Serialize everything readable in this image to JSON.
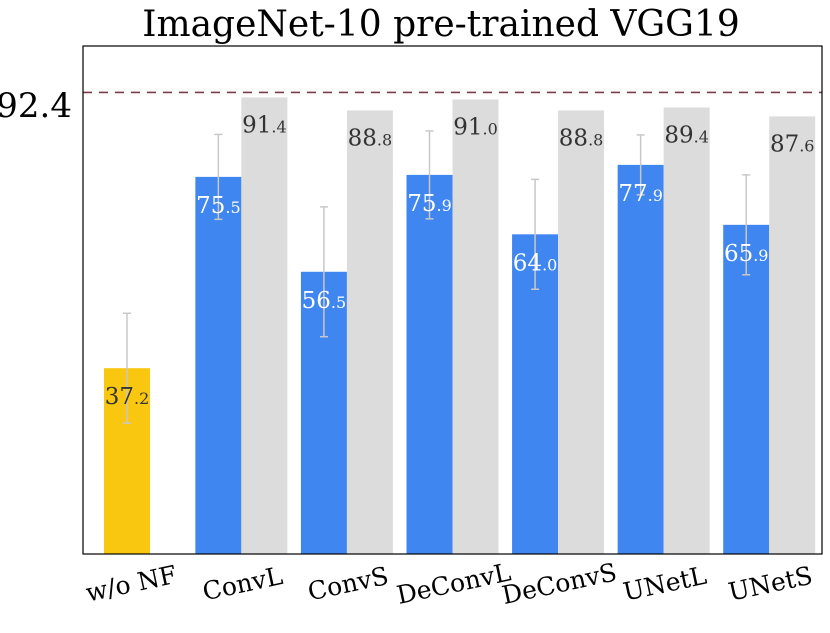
{
  "chart_data": {
    "type": "bar",
    "title": "ImageNet-10 pre-trained VGG19",
    "reference_line": {
      "value": 92.4,
      "label": "92.4",
      "color": "#7b3b4b",
      "style": "dashed"
    },
    "ylim": [
      0,
      101.7
    ],
    "grid": false,
    "categories": [
      "w/o NF",
      "ConvL",
      "ConvS",
      "DeConvL",
      "DeConvS",
      "UNetL",
      "UNetS"
    ],
    "series": [
      {
        "colors": [
          "#fac710",
          "#3f86f0",
          "#3f86f0",
          "#3f86f0",
          "#3f86f0",
          "#3f86f0",
          "#3f86f0"
        ],
        "values": [
          37.2,
          75.5,
          56.5,
          75.9,
          64.0,
          77.9,
          65.9
        ],
        "error": [
          11.0,
          8.5,
          13.0,
          8.8,
          11.0,
          6.0,
          10.0
        ],
        "labels": [
          {
            "int": "37",
            "dec": ".2"
          },
          {
            "int": "75",
            "dec": ".5"
          },
          {
            "int": "56",
            "dec": ".5"
          },
          {
            "int": "75",
            "dec": ".9"
          },
          {
            "int": "64",
            "dec": ".0"
          },
          {
            "int": "77",
            "dec": ".9"
          },
          {
            "int": "65",
            "dec": ".9"
          }
        ]
      },
      {
        "colors": [
          "",
          "#dcdcdc",
          "#dcdcdc",
          "#dcdcdc",
          "#dcdcdc",
          "#dcdcdc",
          "#dcdcdc"
        ],
        "values": [
          null,
          91.4,
          88.8,
          91.0,
          88.8,
          89.4,
          87.6
        ],
        "labels": [
          null,
          {
            "int": "91",
            "dec": ".4"
          },
          {
            "int": "88",
            "dec": ".8"
          },
          {
            "int": "91",
            "dec": ".0"
          },
          {
            "int": "88",
            "dec": ".8"
          },
          {
            "int": "89",
            "dec": ".4"
          },
          {
            "int": "87",
            "dec": ".6"
          }
        ]
      }
    ],
    "colors": {
      "error_bar": "#c8c8c8",
      "axis": "#000000",
      "label_on_blue": "#ffffff",
      "label_dark": "#333333"
    }
  }
}
